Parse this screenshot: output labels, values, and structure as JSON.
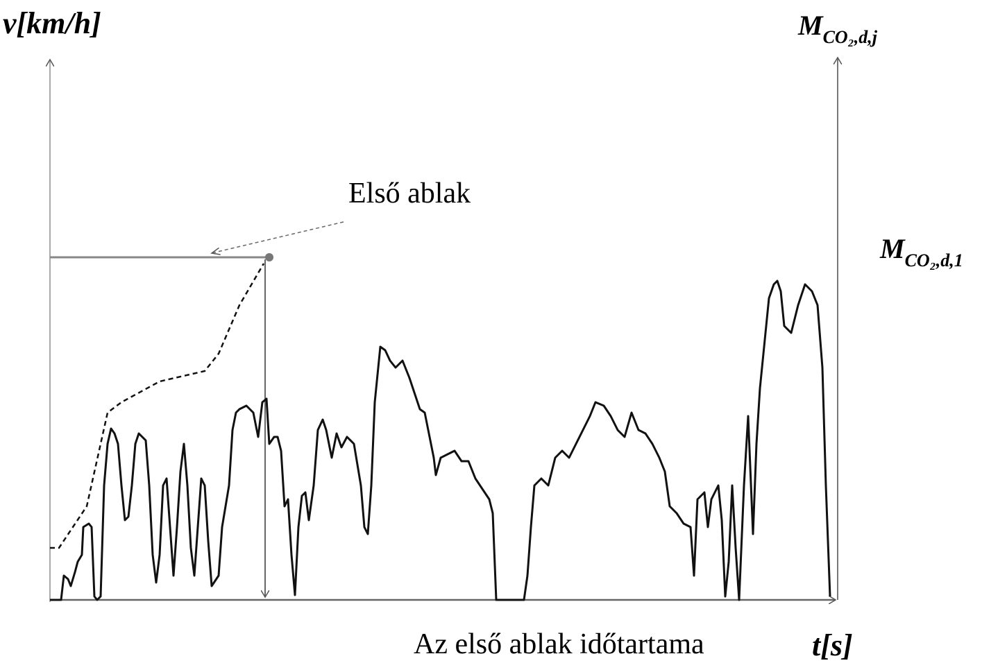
{
  "labels": {
    "y_axis": "v[km/h]",
    "x_axis": "t[s]",
    "right_axis_top": {
      "main": "M",
      "sub": "CO₂,d,j"
    },
    "right_axis_level": {
      "main": "M",
      "sub": "CO₂,d,1"
    },
    "window": "Első ablak",
    "window_duration": "Az első ablak időtartama"
  }
}
